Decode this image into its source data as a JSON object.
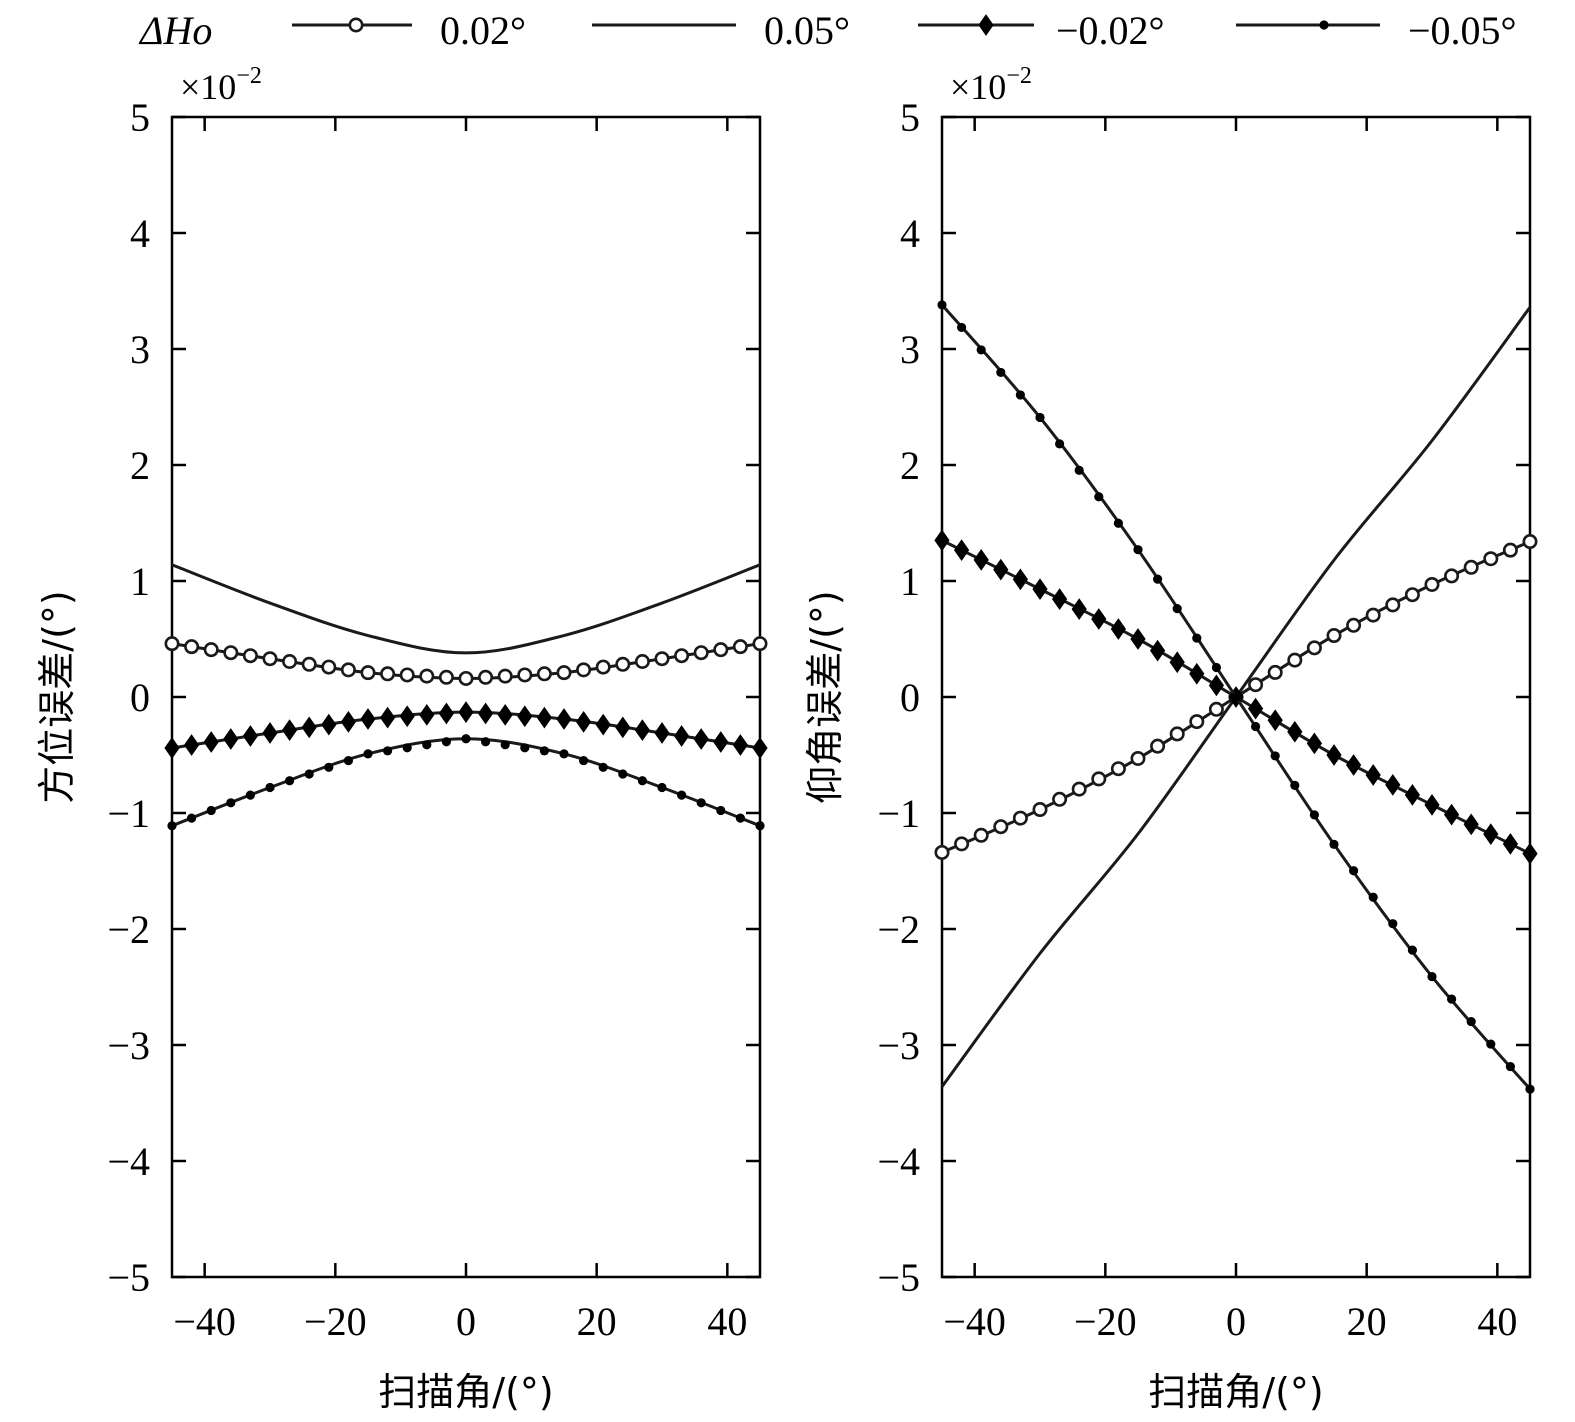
{
  "legend": {
    "title": "ΔHo",
    "placement": "top"
  },
  "style": {
    "line_color": "#1a1a1a",
    "marker_open_fill": "#ffffff",
    "marker_solid_fill": "#000000"
  },
  "chart_data": [
    {
      "type": "line",
      "multiplier": "×10",
      "multiplier_exp": "−2",
      "xlabel": "扫描角/(°)",
      "ylabel": "方位误差/(°)",
      "xlim": [
        -45,
        45
      ],
      "ylim": [
        -5,
        5
      ],
      "x_ticks": [
        -40,
        -20,
        0,
        20,
        40
      ],
      "x_tick_labels": [
        "−40",
        "−20",
        "0",
        "20",
        "40"
      ],
      "y_ticks": [
        -5,
        -4,
        -3,
        -2,
        -1,
        0,
        1,
        2,
        3,
        4,
        5
      ],
      "y_tick_labels": [
        "−5",
        "−4",
        "−3",
        "−2",
        "−1",
        "0",
        "1",
        "2",
        "3",
        "4",
        "5"
      ],
      "grid": false,
      "series": [
        {
          "name": "0.02°",
          "marker": "open-circle",
          "x": [
            -45,
            -30,
            -15,
            0,
            15,
            30,
            45
          ],
          "y": [
            0.46,
            0.33,
            0.21,
            0.16,
            0.21,
            0.33,
            0.46
          ]
        },
        {
          "name": "0.05°",
          "marker": "none",
          "x": [
            -45,
            -30,
            -15,
            0,
            15,
            30,
            45
          ],
          "y": [
            1.14,
            0.81,
            0.53,
            0.38,
            0.53,
            0.81,
            1.14
          ]
        },
        {
          "name": "−0.02°",
          "marker": "diamond",
          "x": [
            -45,
            -30,
            -15,
            0,
            15,
            30,
            45
          ],
          "y": [
            -0.44,
            -0.31,
            -0.19,
            -0.13,
            -0.19,
            -0.31,
            -0.44
          ]
        },
        {
          "name": "−0.05°",
          "marker": "dot",
          "x": [
            -45,
            -30,
            -15,
            0,
            15,
            30,
            45
          ],
          "y": [
            -1.11,
            -0.78,
            -0.49,
            -0.36,
            -0.49,
            -0.78,
            -1.11
          ]
        }
      ]
    },
    {
      "type": "line",
      "multiplier": "×10",
      "multiplier_exp": "−2",
      "xlabel": "扫描角/(°)",
      "ylabel": "仰角误差/(°)",
      "xlim": [
        -45,
        45
      ],
      "ylim": [
        -5,
        5
      ],
      "x_ticks": [
        -40,
        -20,
        0,
        20,
        40
      ],
      "x_tick_labels": [
        "−40",
        "−20",
        "0",
        "20",
        "40"
      ],
      "y_ticks": [
        -5,
        -4,
        -3,
        -2,
        -1,
        0,
        1,
        2,
        3,
        4,
        5
      ],
      "y_tick_labels": [
        "−5",
        "−4",
        "−3",
        "−2",
        "−1",
        "0",
        "1",
        "2",
        "3",
        "4",
        "5"
      ],
      "grid": false,
      "series": [
        {
          "name": "0.02°",
          "marker": "open-circle",
          "x": [
            -45,
            -30,
            -15,
            0,
            15,
            30,
            45
          ],
          "y": [
            -1.34,
            -0.97,
            -0.53,
            0.0,
            0.53,
            0.97,
            1.34
          ]
        },
        {
          "name": "0.05°",
          "marker": "none",
          "x": [
            -45,
            -30,
            -15,
            0,
            15,
            30,
            45
          ],
          "y": [
            -3.36,
            -2.21,
            -1.18,
            0.0,
            1.18,
            2.21,
            3.36
          ]
        },
        {
          "name": "−0.02°",
          "marker": "diamond",
          "x": [
            -45,
            -30,
            -15,
            0,
            15,
            30,
            45
          ],
          "y": [
            1.35,
            0.93,
            0.5,
            0.0,
            -0.5,
            -0.93,
            -1.35
          ]
        },
        {
          "name": "−0.05°",
          "marker": "dot",
          "x": [
            -45,
            -30,
            -15,
            0,
            15,
            30,
            45
          ],
          "y": [
            3.38,
            2.41,
            1.27,
            0.0,
            -1.27,
            -2.41,
            -3.38
          ]
        }
      ]
    }
  ]
}
